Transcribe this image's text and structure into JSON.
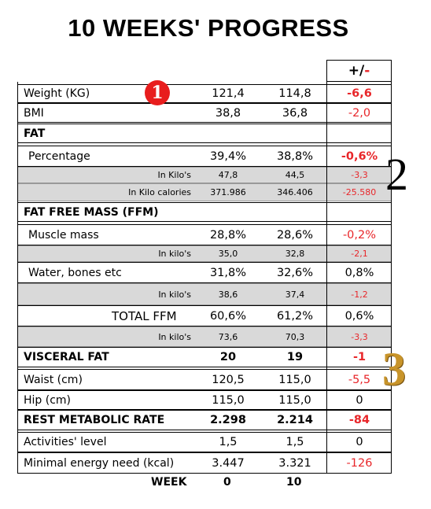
{
  "title": "10 WEEKS' PROGRESS",
  "header": {
    "delta": [
      "+/",
      "-"
    ]
  },
  "rows": [
    {
      "label": "Weight (KG)",
      "w0": "121,4",
      "w10": "114,8",
      "delta": "-6,6",
      "kind": "main",
      "tone": "redbold"
    },
    {
      "label": "BMI",
      "w0": "38,8",
      "w10": "36,8",
      "delta": "-2,0",
      "kind": "main",
      "tone": "red"
    },
    {
      "label": "FAT",
      "kind": "section"
    },
    {
      "label": "Percentage",
      "w0": "39,4%",
      "w10": "38,8%",
      "delta": "-0,6%",
      "kind": "indent",
      "tone": "redbold"
    },
    {
      "label": "In Kilo's",
      "w0": "47,8",
      "w10": "44,5",
      "delta": "-3,3",
      "kind": "sub",
      "tone": "red"
    },
    {
      "label": "In Kilo calories",
      "w0": "371.986",
      "w10": "346.406",
      "delta": "-25.580",
      "kind": "sub",
      "tone": "red"
    },
    {
      "label": "FAT FREE MASS (FFM)",
      "kind": "section"
    },
    {
      "label": "Muscle mass",
      "w0": "28,8%",
      "w10": "28,6%",
      "delta": "-0,2%",
      "kind": "indent",
      "tone": "red"
    },
    {
      "label": "In kilo's",
      "w0": "35,0",
      "w10": "32,8",
      "delta": "-2,1",
      "kind": "sub",
      "tone": "red"
    },
    {
      "label": "Water, bones etc",
      "w0": "31,8%",
      "w10": "32,6%",
      "delta": "0,8%",
      "kind": "indent",
      "tone": "black"
    },
    {
      "label": "In kilo's",
      "w0": "38,6",
      "w10": "37,4",
      "delta": "-1,2",
      "kind": "sub",
      "tone": "red"
    },
    {
      "label": "TOTAL FFM",
      "w0": "60,6%",
      "w10": "61,2%",
      "delta": "0,6%",
      "kind": "total",
      "tone": "black"
    },
    {
      "label": "In kilo's",
      "w0": "73,6",
      "w10": "70,3",
      "delta": "-3,3",
      "kind": "sub",
      "tone": "red"
    },
    {
      "label": "VISCERAL FAT",
      "w0": "20",
      "w10": "19",
      "delta": "-1",
      "kind": "bold",
      "tone": "redbold"
    },
    {
      "label": "Waist (cm)",
      "w0": "120,5",
      "w10": "115,0",
      "delta": "-5,5",
      "kind": "main",
      "tone": "red"
    },
    {
      "label": "Hip (cm)",
      "w0": "115,0",
      "w10": "115,0",
      "delta": "0",
      "kind": "main",
      "tone": "black"
    },
    {
      "label": "REST METABOLIC RATE",
      "w0": "2.298",
      "w10": "2.214",
      "delta": "-84",
      "kind": "bold",
      "tone": "red"
    },
    {
      "label": "Activities' level",
      "w0": "1,5",
      "w10": "1,5",
      "delta": "0",
      "kind": "main",
      "tone": "black"
    },
    {
      "label": "Minimal energy need (kcal)",
      "w0": "3.447",
      "w10": "3.321",
      "delta": "-126",
      "kind": "main",
      "tone": "red"
    }
  ],
  "footer": {
    "label": "WEEK",
    "week0": "0",
    "week10": "10"
  },
  "markers": [
    "1",
    "2",
    "3"
  ]
}
